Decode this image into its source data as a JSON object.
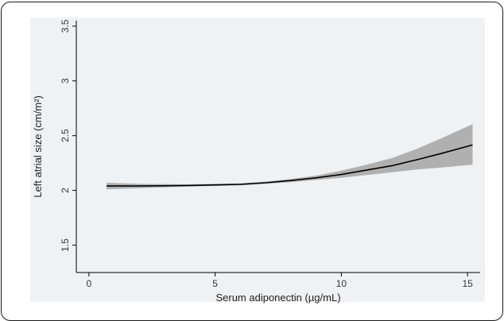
{
  "chart_data": {
    "type": "line",
    "xlabel": "Serum adiponectin (µg/mL)",
    "ylabel": "Left atrial size (cm/m²)",
    "xlim": [
      -0.5,
      15.5
    ],
    "ylim": [
      1.25,
      3.55
    ],
    "x_ticks": [
      0,
      5,
      10,
      15
    ],
    "y_ticks": [
      1.5,
      2,
      2.5,
      3,
      3.5
    ],
    "x_tick_labels": [
      "0",
      "5",
      "10",
      "15"
    ],
    "y_tick_labels": [
      "1.5",
      "2",
      "2.5",
      "3",
      "3.5"
    ],
    "grid": false,
    "series": [
      {
        "color": "#000000",
        "band_color": "#b0b0b0",
        "x": [
          0.7,
          2,
          4,
          6,
          7,
          8,
          9,
          10,
          11,
          12,
          13,
          14,
          15.2
        ],
        "y": [
          2.04,
          2.04,
          2.045,
          2.055,
          2.07,
          2.09,
          2.115,
          2.145,
          2.185,
          2.225,
          2.28,
          2.34,
          2.415
        ],
        "lower": [
          2.01,
          2.02,
          2.035,
          2.045,
          2.06,
          2.075,
          2.095,
          2.115,
          2.14,
          2.165,
          2.19,
          2.21,
          2.235
        ],
        "upper": [
          2.07,
          2.06,
          2.055,
          2.065,
          2.08,
          2.105,
          2.135,
          2.18,
          2.235,
          2.295,
          2.38,
          2.48,
          2.605
        ]
      }
    ]
  }
}
